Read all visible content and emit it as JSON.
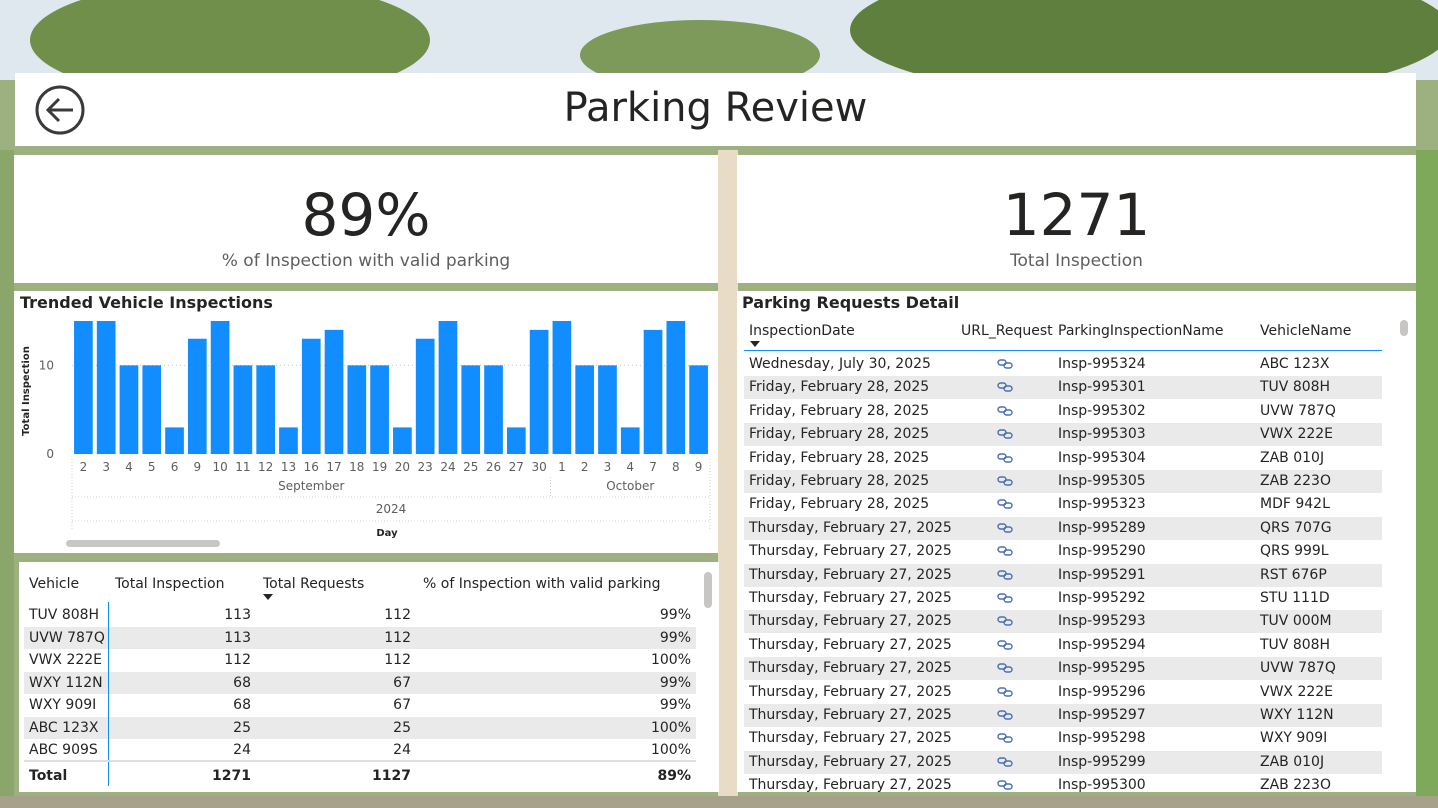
{
  "page": {
    "title": "Parking Review"
  },
  "kpis": [
    {
      "value": "89%",
      "label": "% of Inspection with valid parking"
    },
    {
      "value": "1271",
      "label": "Total Inspection"
    }
  ],
  "chart_data": {
    "type": "bar",
    "title": "Trended Vehicle Inspections",
    "ylabel": "Total Inspection",
    "xlabel": "Day",
    "ylim": [
      0,
      15
    ],
    "yticks": [
      0,
      10
    ],
    "categories": [
      "2",
      "3",
      "4",
      "5",
      "6",
      "9",
      "10",
      "11",
      "12",
      "13",
      "16",
      "17",
      "18",
      "19",
      "20",
      "23",
      "24",
      "25",
      "26",
      "27",
      "30",
      "1",
      "2",
      "3",
      "4",
      "7",
      "8",
      "9"
    ],
    "values": [
      15,
      15,
      10,
      10,
      3,
      13,
      15,
      10,
      10,
      3,
      13,
      14,
      10,
      10,
      3,
      13,
      15,
      10,
      10,
      3,
      14,
      15,
      10,
      10,
      3,
      14,
      15,
      10
    ],
    "months": [
      {
        "name": "September",
        "start": 0,
        "end": 20
      },
      {
        "name": "October",
        "start": 21,
        "end": 27
      }
    ],
    "year": "2024",
    "bar_color": "#118dff",
    "grid": true
  },
  "vehicle_table": {
    "columns": [
      "Vehicle",
      "Total Inspection",
      "Total Requests",
      "% of Inspection with valid parking"
    ],
    "rows": [
      [
        "TUV 808H",
        "113",
        "112",
        "99%"
      ],
      [
        "UVW 787Q",
        "113",
        "112",
        "99%"
      ],
      [
        "VWX 222E",
        "112",
        "112",
        "100%"
      ],
      [
        "WXY 112N",
        "68",
        "67",
        "99%"
      ],
      [
        "WXY 909I",
        "68",
        "67",
        "99%"
      ],
      [
        "ABC 123X",
        "25",
        "25",
        "100%"
      ],
      [
        "ABC 909S",
        "24",
        "24",
        "100%"
      ]
    ],
    "total": [
      "Total",
      "1271",
      "1127",
      "89%"
    ]
  },
  "requests_table": {
    "title": "Parking Requests Detail",
    "columns": [
      "InspectionDate",
      "URL_Request",
      "ParkingInspectionName",
      "VehicleName"
    ],
    "link_icon": "link-icon",
    "rows": [
      [
        "Wednesday, July 30, 2025",
        "Insp-995324",
        "ABC 123X"
      ],
      [
        "Friday, February 28, 2025",
        "Insp-995301",
        "TUV 808H"
      ],
      [
        "Friday, February 28, 2025",
        "Insp-995302",
        "UVW 787Q"
      ],
      [
        "Friday, February 28, 2025",
        "Insp-995303",
        "VWX 222E"
      ],
      [
        "Friday, February 28, 2025",
        "Insp-995304",
        "ZAB 010J"
      ],
      [
        "Friday, February 28, 2025",
        "Insp-995305",
        "ZAB 223O"
      ],
      [
        "Friday, February 28, 2025",
        "Insp-995323",
        "MDF 942L"
      ],
      [
        "Thursday, February 27, 2025",
        "Insp-995289",
        "QRS 707G"
      ],
      [
        "Thursday, February 27, 2025",
        "Insp-995290",
        "QRS 999L"
      ],
      [
        "Thursday, February 27, 2025",
        "Insp-995291",
        "RST 676P"
      ],
      [
        "Thursday, February 27, 2025",
        "Insp-995292",
        "STU 111D"
      ],
      [
        "Thursday, February 27, 2025",
        "Insp-995293",
        "TUV 000M"
      ],
      [
        "Thursday, February 27, 2025",
        "Insp-995294",
        "TUV 808H"
      ],
      [
        "Thursday, February 27, 2025",
        "Insp-995295",
        "UVW 787Q"
      ],
      [
        "Thursday, February 27, 2025",
        "Insp-995296",
        "VWX 222E"
      ],
      [
        "Thursday, February 27, 2025",
        "Insp-995297",
        "WXY 112N"
      ],
      [
        "Thursday, February 27, 2025",
        "Insp-995298",
        "WXY 909I"
      ],
      [
        "Thursday, February 27, 2025",
        "Insp-995299",
        "ZAB 010J"
      ],
      [
        "Thursday, February 27, 2025",
        "Insp-995300",
        "ZAB 223O"
      ]
    ]
  }
}
